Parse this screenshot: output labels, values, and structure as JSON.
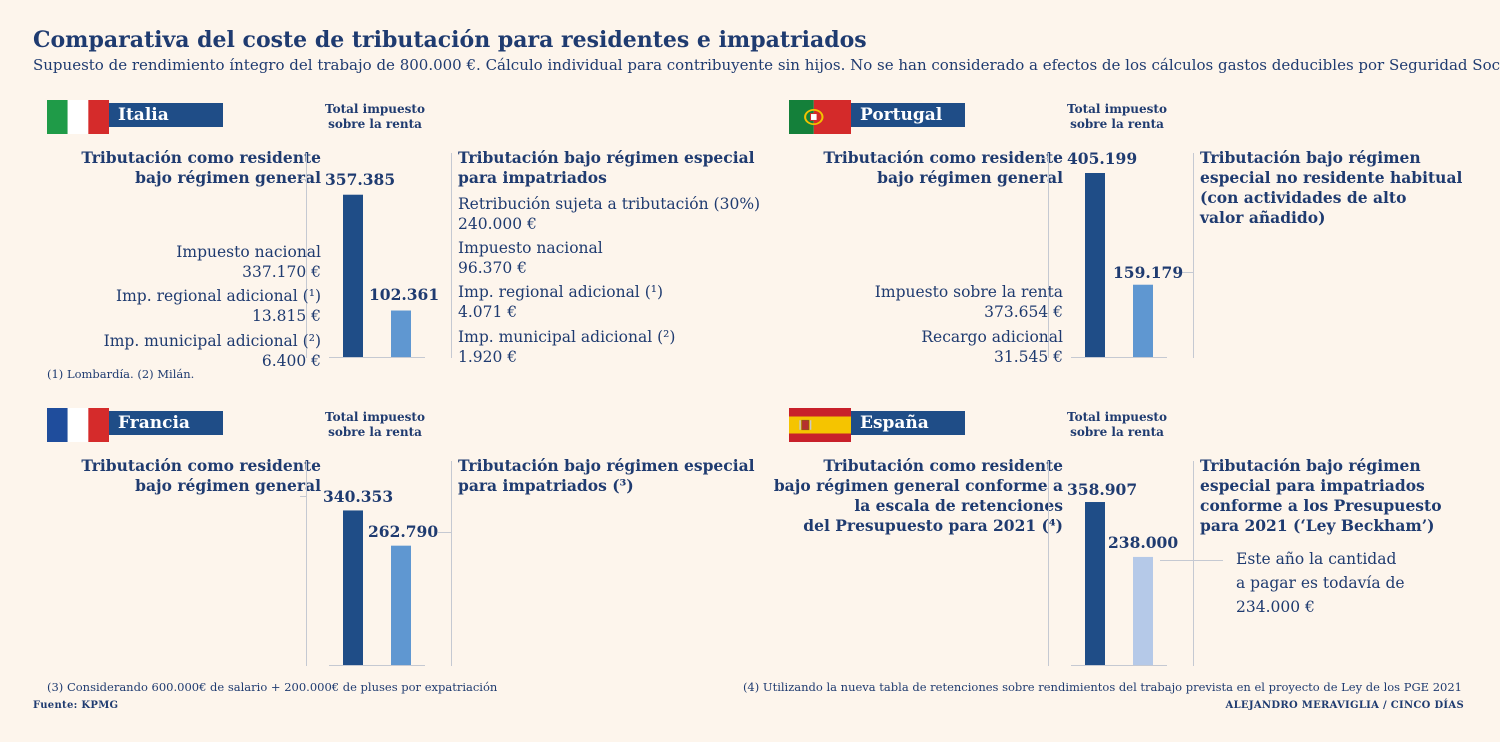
{
  "title": "Comparativa del coste de tributación para residentes e impatriados",
  "subtitle": "Supuesto de rendimiento íntegro del trabajo de 800.000 €. Cálculo individual para contribuyente sin hijos. No se han considerado a efectos de los cálculos gastos deducibles por Seguridad Social",
  "total_label": "Total impuesto sobre la renta",
  "colors": {
    "resident": "#1f4d87",
    "special": "#5f97d1",
    "special_spain": "#b5c9e8",
    "background": "#fdf5ec",
    "text": "#1f3b70"
  },
  "chart_data": [
    {
      "type": "bar",
      "country": "Italia",
      "categories": [
        "Tributación como residente bajo régimen general",
        "Tributación bajo régimen especial para impatriados"
      ],
      "values": [
        357385,
        102361
      ],
      "value_labels": [
        "357.385",
        "102.361"
      ],
      "ylim": [
        0,
        405199
      ]
    },
    {
      "type": "bar",
      "country": "Portugal",
      "categories": [
        "Tributación como residente bajo régimen general",
        "Tributación bajo régimen especial no residente habitual (con actividades de alto valor añadido)"
      ],
      "values": [
        405199,
        159179
      ],
      "value_labels": [
        "405.199",
        "159.179"
      ],
      "ylim": [
        0,
        405199
      ]
    },
    {
      "type": "bar",
      "country": "Francia",
      "categories": [
        "Tributación como residente bajo régimen general",
        "Tributación bajo régimen especial para impatriados (³)"
      ],
      "values": [
        340353,
        262790
      ],
      "value_labels": [
        "340.353",
        "262.790"
      ],
      "ylim": [
        0,
        405199
      ]
    },
    {
      "type": "bar",
      "country": "España",
      "categories": [
        "Tributación como residente bajo régimen general conforme a la escala de retenciones del Presupuesto para 2021 (⁴)",
        "Tributación bajo régimen especial para impatriados conforme a los Presupuesto para 2021 (‘Ley Beckham’)"
      ],
      "values": [
        358907,
        238000
      ],
      "value_labels": [
        "358.907",
        "238.000"
      ],
      "ylim": [
        0,
        405199
      ]
    }
  ],
  "italia": {
    "name": "Italia",
    "resident_label": [
      "Tributación como residente",
      "bajo régimen general"
    ],
    "special_label": [
      "Tributación bajo régimen especial",
      "para impatriados"
    ],
    "resident_items": [
      {
        "name": "Impuesto nacional",
        "value": "337.170 €"
      },
      {
        "name": "Imp. regional adicional (¹)",
        "value": "13.815 €"
      },
      {
        "name": "Imp. municipal adicional (²)",
        "value": "6.400 €"
      }
    ],
    "special_items": [
      {
        "name": "Retribución sujeta a tributación (30%)",
        "value": "240.000 €"
      },
      {
        "name": "Impuesto nacional",
        "value": "96.370 €"
      },
      {
        "name": "Imp. regional adicional (¹)",
        "value": "4.071 €"
      },
      {
        "name": "Imp. municipal adicional (²)",
        "value": "1.920 €"
      }
    ],
    "note": "(1) Lombardía. (2) Milán."
  },
  "portugal": {
    "name": "Portugal",
    "resident_label": [
      "Tributación como residente",
      "bajo régimen general"
    ],
    "special_label": [
      "Tributación bajo régimen",
      "especial no residente habitual",
      "(con actividades de alto",
      "valor añadido)"
    ],
    "resident_items": [
      {
        "name": "Impuesto sobre la renta",
        "value": "373.654 €"
      },
      {
        "name": "Recargo adicional",
        "value": "31.545 €"
      }
    ]
  },
  "francia": {
    "name": "Francia",
    "resident_label": [
      "Tributación como residente",
      "bajo régimen general"
    ],
    "special_label": [
      "Tributación bajo régimen especial",
      "para impatriados (³)"
    ]
  },
  "espana": {
    "name": "España",
    "resident_label": [
      "Tributación como residente",
      "bajo régimen general conforme a",
      "la escala de retenciones",
      "del Presupuesto para 2021 (⁴)"
    ],
    "special_label": [
      "Tributación bajo régimen",
      "especial para impatriados",
      "conforme a los Presupuesto",
      "para 2021 (‘Ley Beckham’)"
    ],
    "annotation": [
      "Este año la cantidad",
      "a pagar es todavía de",
      "234.000 €"
    ]
  },
  "footnotes": {
    "left": "(3) Considerando 600.000€ de salario + 200.000€ de pluses por expatriación",
    "right": "(4) Utilizando la nueva tabla de retenciones sobre rendimientos del trabajo prevista en el proyecto de Ley de los PGE 2021"
  },
  "source": "Fuente: KPMG",
  "credit": "ALEJANDRO MERAVIGLIA / CINCO DÍAS"
}
